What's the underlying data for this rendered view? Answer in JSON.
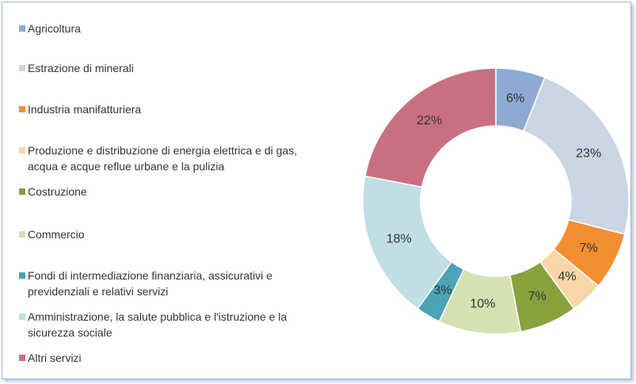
{
  "chart_data": {
    "type": "donut",
    "categories": [
      "Agricoltura",
      "Estrazione di minerali",
      "Industria manifatturiera",
      "Produzione e distribuzione di energia elettrica e di gas, acqua e acque reflue urbane e la pulizia",
      "Costruzione",
      "Commercio",
      "Fondi di intermediazione finanziaria, assicurativi e previdenziali e relativi servizi",
      "Amministrazione, la salute pubblica e l'istruzione e la sicurezza sociale",
      "Altri servizi"
    ],
    "values": [
      6,
      23,
      7,
      4,
      7,
      10,
      3,
      18,
      22
    ],
    "value_labels": [
      "6%",
      "23%",
      "7%",
      "4%",
      "7%",
      "10%",
      "3%",
      "18%",
      "22%"
    ],
    "colors": [
      "#8eaad2",
      "#cbd5e3",
      "#f28e2f",
      "#f9d5a9",
      "#87a13d",
      "#d6e1b3",
      "#4ba3b5",
      "#c0dee4",
      "#c97080"
    ],
    "legend": "left"
  }
}
